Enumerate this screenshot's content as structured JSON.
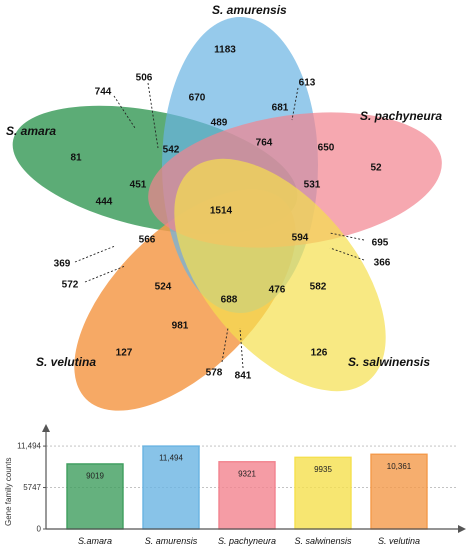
{
  "venn": {
    "sets": [
      {
        "name": "S. amurensis",
        "color": "#6ab4e2"
      },
      {
        "name": "S. pachyneura",
        "color": "#f2838f"
      },
      {
        "name": "S. salwinensis",
        "color": "#f5e04e"
      },
      {
        "name": "S. velutina",
        "color": "#f49a4a"
      },
      {
        "name": "S. amara",
        "color": "#3f9e5e"
      }
    ],
    "regions": [
      "1183",
      "52",
      "126",
      "127",
      "81",
      "670",
      "489",
      "681",
      "764",
      "650",
      "542",
      "451",
      "444",
      "531",
      "594",
      "1514",
      "566",
      "524",
      "688",
      "476",
      "582",
      "981",
      "506",
      "744",
      "613",
      "695",
      "366",
      "369",
      "572",
      "578",
      "841"
    ]
  },
  "chart_data": {
    "type": "bar",
    "categories": [
      "S.amara",
      "S. amurensis",
      "S. pachyneura",
      "S. salwinensis",
      "S. velutina"
    ],
    "values": [
      9019,
      11494,
      9321,
      9935,
      10361
    ],
    "value_labels": [
      "9019",
      "11,494",
      "9321",
      "9935",
      "10,361"
    ],
    "colors": [
      "#3f9e5e",
      "#6ab4e2",
      "#f2838f",
      "#f5e04e",
      "#f49a4a"
    ],
    "ylabel": "Gene family counts",
    "yticks": [
      "0",
      "5747",
      "11,494"
    ],
    "ylim": [
      0,
      14000
    ]
  }
}
